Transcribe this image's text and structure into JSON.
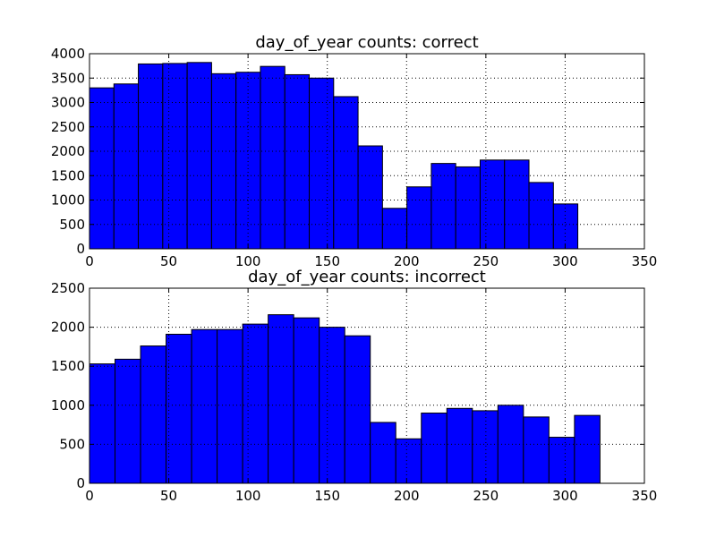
{
  "colors": {
    "bar_fill": "#0000ff",
    "bar_edge": "#000000"
  },
  "chart_data": [
    {
      "type": "bar",
      "title": "day_of_year counts: correct",
      "xlabel": "",
      "ylabel": "",
      "xlim": [
        0,
        350
      ],
      "ylim": [
        0,
        4000
      ],
      "xticks": [
        0,
        50,
        100,
        150,
        200,
        250,
        300,
        350
      ],
      "yticks": [
        0,
        500,
        1000,
        1500,
        2000,
        2500,
        3000,
        3500,
        4000
      ],
      "grid": true,
      "bin_edges": [
        0,
        15.4,
        30.8,
        46.2,
        61.6,
        77.0,
        92.4,
        107.8,
        123.2,
        138.6,
        154.0,
        169.4,
        184.8,
        200.2,
        215.6,
        231.0,
        246.4,
        261.8,
        277.2,
        292.6,
        308.0
      ],
      "values": [
        3300,
        3380,
        3790,
        3800,
        3820,
        3590,
        3620,
        3740,
        3570,
        3500,
        3120,
        2110,
        830,
        1270,
        1750,
        1680,
        1820,
        1820,
        1360,
        920
      ]
    },
    {
      "type": "bar",
      "title": "day_of_year counts: incorrect",
      "xlabel": "",
      "ylabel": "",
      "xlim": [
        0,
        350
      ],
      "ylim": [
        0,
        2500
      ],
      "xticks": [
        0,
        50,
        100,
        150,
        200,
        250,
        300,
        350
      ],
      "yticks": [
        0,
        500,
        1000,
        1500,
        2000,
        2500
      ],
      "grid": true,
      "bin_edges": [
        0,
        16.1,
        32.2,
        48.3,
        64.4,
        80.5,
        96.6,
        112.7,
        128.8,
        144.9,
        161.0,
        177.1,
        193.2,
        209.3,
        225.4,
        241.5,
        257.6,
        273.7,
        289.8,
        305.9,
        322.0
      ],
      "values": [
        1530,
        1590,
        1760,
        1910,
        1970,
        1970,
        2040,
        2160,
        2120,
        2000,
        1890,
        780,
        570,
        900,
        960,
        930,
        1000,
        850,
        590,
        870
      ]
    }
  ]
}
